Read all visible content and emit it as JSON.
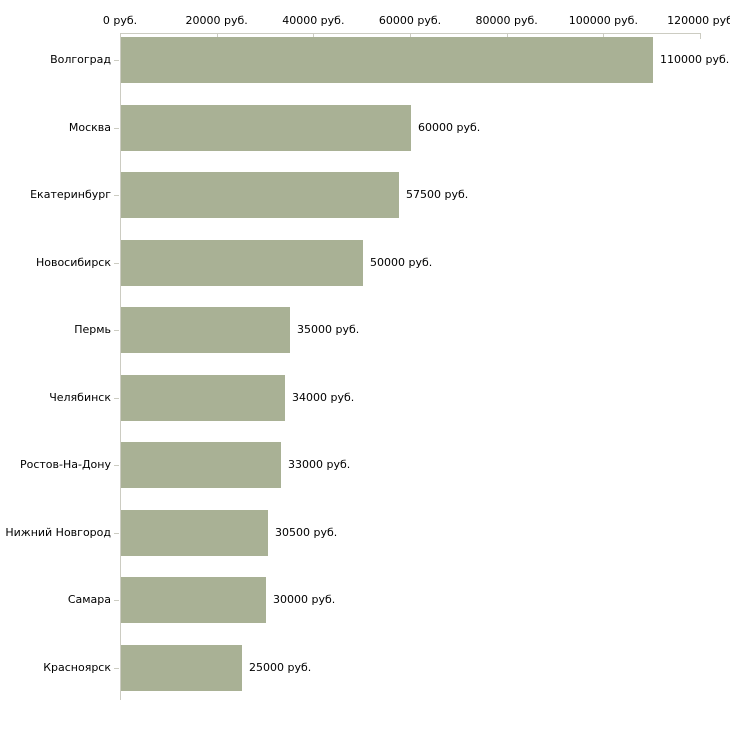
{
  "chart_data": {
    "type": "bar",
    "orientation": "horizontal",
    "title": "",
    "xlabel": "",
    "ylabel": "",
    "grid": "off",
    "legend": "none",
    "xlim": [
      0,
      120000
    ],
    "categories": [
      "Волгоград",
      "Москва",
      "Екатеринбург",
      "Новосибирск",
      "Пермь",
      "Челябинск",
      "Ростов-На-Дону",
      "Нижний Новгород",
      "Самара",
      "Красноярск"
    ],
    "values": [
      110000,
      60000,
      57500,
      50000,
      35000,
      34000,
      33000,
      30500,
      30000,
      25000
    ],
    "value_labels": [
      "110000 руб.",
      "60000 руб.",
      "57500 руб.",
      "50000 руб.",
      "35000 руб.",
      "34000 руб.",
      "33000 руб.",
      "30500 руб.",
      "30000 руб.",
      "25000 руб."
    ],
    "x_tick_values": [
      0,
      20000,
      40000,
      60000,
      80000,
      100000,
      120000
    ],
    "x_tick_labels": [
      "0 руб.",
      "20000 руб.",
      "40000 руб.",
      "60000 руб.",
      "80000 руб.",
      "100000 руб.",
      "120000 руб"
    ],
    "colors": {
      "bar": "#a9b195",
      "axis": "#ccccc2",
      "text": "#000000",
      "background": "#ffffff"
    }
  }
}
